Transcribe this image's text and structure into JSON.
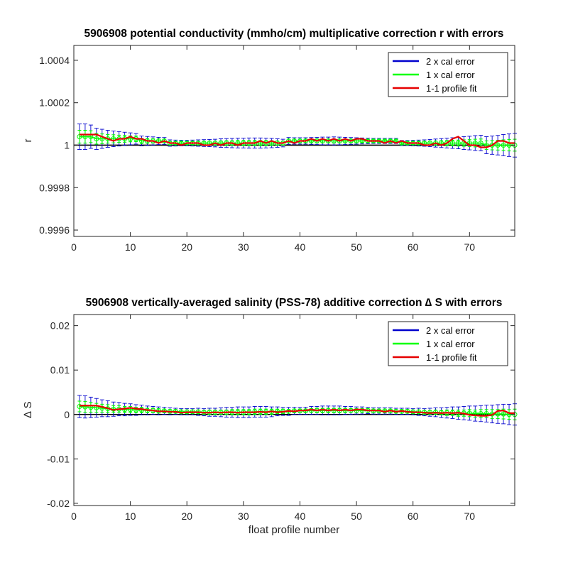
{
  "colors": {
    "two_x_cal_error": "#0000cd",
    "one_x_cal_error": "#00ff00",
    "profile_fit": "#e60000",
    "baseline": "#000000"
  },
  "chart_data": [
    {
      "type": "line",
      "title": "5906908 potential conductivity (mmho/cm) multiplicative correction r with errors",
      "xlabel": "",
      "ylabel": "r",
      "xlim": [
        0,
        78
      ],
      "ylim": [
        0.99957,
        1.00047
      ],
      "xticks": [
        0,
        10,
        20,
        30,
        40,
        50,
        60,
        70
      ],
      "xtick_labels": [
        "0",
        "10",
        "20",
        "30",
        "40",
        "50",
        "60",
        "70"
      ],
      "yticks": [
        0.9996,
        0.9998,
        1.0,
        1.0002,
        1.0004
      ],
      "ytick_labels": [
        "0.9996",
        "0.9998",
        "1",
        "1.0002",
        "1.0004"
      ],
      "grid": false,
      "legend_position": "top-right",
      "legend": [
        "2 x cal error",
        "1 x cal error",
        "1-1 profile fit"
      ],
      "baseline": 1.0,
      "x_start": 1,
      "fit": [
        1.00005,
        1.00005,
        1.00005,
        1.00005,
        1.00004,
        1.00003,
        1.00002,
        1.00003,
        1.00003,
        1.00004,
        1.00003,
        1.00003,
        1.00002,
        1.00002,
        1.00001,
        1.00002,
        1.00001,
        1.00001,
        1.0,
        1.00001,
        1.00001,
        1.00001,
        1.0,
        1.0,
        1.00001,
        1.0,
        1.00001,
        1.00001,
        1.0,
        1.00001,
        1.00001,
        1.00001,
        1.00002,
        1.00001,
        1.00002,
        1.00001,
        1.00001,
        1.00002,
        1.00001,
        1.00002,
        1.00002,
        1.00003,
        1.00002,
        1.00003,
        1.00002,
        1.00003,
        1.00002,
        1.00003,
        1.00002,
        1.00003,
        1.00003,
        1.00002,
        1.00002,
        1.00002,
        1.00001,
        1.00002,
        1.00001,
        1.00002,
        1.00001,
        1.00001,
        1.00001,
        1.0,
        1.0,
        1.00001,
        1.0,
        1.00001,
        1.00003,
        1.00004,
        1.00002,
        1.0,
        1.0,
        0.99999,
        0.99999,
        1.0,
        1.00002,
        1.00002,
        1.00001,
        1.00001
      ],
      "smooth": [
        1.00004,
        1.00004,
        1.00004,
        1.00003,
        1.00003,
        1.00003,
        1.00003,
        1.00003,
        1.00003,
        1.00003,
        1.00003,
        1.00002,
        1.00002,
        1.00002,
        1.00002,
        1.00002,
        1.00001,
        1.00001,
        1.00001,
        1.00001,
        1.00001,
        1.00001,
        1.00001,
        1.00001,
        1.00001,
        1.00001,
        1.00001,
        1.00001,
        1.00001,
        1.00001,
        1.00001,
        1.00001,
        1.00001,
        1.00001,
        1.00001,
        1.00001,
        1.00001,
        1.00002,
        1.00002,
        1.00002,
        1.00002,
        1.00002,
        1.00002,
        1.00002,
        1.00002,
        1.00002,
        1.00002,
        1.00002,
        1.00002,
        1.00002,
        1.00002,
        1.00002,
        1.00002,
        1.00002,
        1.00002,
        1.00002,
        1.00002,
        1.00001,
        1.00001,
        1.00001,
        1.00001,
        1.00001,
        1.00001,
        1.00001,
        1.00001,
        1.00001,
        1.00001,
        1.00001,
        1.00001,
        1.00001,
        1.00001,
        1.00001,
        1.0,
        1.0,
        1.0,
        1.0,
        1.0,
        1.0
      ],
      "err2": [
        6e-05,
        6e-05,
        5.5e-05,
        5e-05,
        4.5e-05,
        4e-05,
        3.7e-05,
        3.4e-05,
        3.1e-05,
        2.8e-05,
        2.5e-05,
        2.3e-05,
        2.1e-05,
        1.9e-05,
        1.7e-05,
        1.6e-05,
        1.5e-05,
        1.4e-05,
        1.3e-05,
        1.3e-05,
        1.4e-05,
        1.5e-05,
        1.6e-05,
        1.7e-05,
        1.8e-05,
        2e-05,
        2.1e-05,
        2.2e-05,
        2.3e-05,
        2.3e-05,
        2.4e-05,
        2.4e-05,
        2.4e-05,
        2.3e-05,
        2.2e-05,
        2e-05,
        1.8e-05,
        1.6e-05,
        1.5e-05,
        1.5e-05,
        1.5e-05,
        1.6e-05,
        1.7e-05,
        1.8e-05,
        1.8e-05,
        1.9e-05,
        1.8e-05,
        1.7e-05,
        1.6e-05,
        1.5e-05,
        1.4e-05,
        1.3e-05,
        1.2e-05,
        1.2e-05,
        1.2e-05,
        1.2e-05,
        1.2e-05,
        1.2e-05,
        1.2e-05,
        1.3e-05,
        1.4e-05,
        1.5e-05,
        1.7e-05,
        1.9e-05,
        2.1e-05,
        2.3e-05,
        2.5e-05,
        2.7e-05,
        3e-05,
        3.2e-05,
        3.5e-05,
        3.7e-05,
        4e-05,
        4.3e-05,
        4.6e-05,
        5e-05,
        5.3e-05,
        5.6e-05
      ],
      "err1": [
        3e-05,
        3e-05,
        2.8e-05,
        2.5e-05,
        2.3e-05,
        2e-05,
        1.9e-05,
        1.7e-05,
        1.6e-05,
        1.4e-05,
        1.3e-05,
        1.2e-05,
        1.1e-05,
        1e-05,
        9e-06,
        8e-06,
        8e-06,
        7e-06,
        7e-06,
        7e-06,
        7e-06,
        8e-06,
        8e-06,
        9e-06,
        9e-06,
        1e-05,
        1.1e-05,
        1.1e-05,
        1.2e-05,
        1.2e-05,
        1.2e-05,
        1.2e-05,
        1.2e-05,
        1.2e-05,
        1.1e-05,
        1e-05,
        9e-06,
        8e-06,
        8e-06,
        8e-06,
        8e-06,
        8e-06,
        9e-06,
        9e-06,
        9e-06,
        1e-05,
        9e-06,
        9e-06,
        8e-06,
        8e-06,
        7e-06,
        7e-06,
        6e-06,
        6e-06,
        6e-06,
        6e-06,
        6e-06,
        6e-06,
        6e-06,
        7e-06,
        7e-06,
        8e-06,
        9e-06,
        1e-05,
        1.1e-05,
        1.2e-05,
        1.3e-05,
        1.4e-05,
        1.5e-05,
        1.6e-05,
        1.8e-05,
        1.9e-05,
        2e-05,
        2.2e-05,
        2.3e-05,
        2.5e-05,
        2.7e-05,
        2.8e-05
      ]
    },
    {
      "type": "line",
      "title": "5906908 vertically-averaged salinity (PSS-78) additive correction ∆ S with errors",
      "xlabel": "float profile number",
      "ylabel": "∆ S",
      "xlim": [
        0,
        78
      ],
      "ylim": [
        -0.0205,
        0.0225
      ],
      "xticks": [
        0,
        10,
        20,
        30,
        40,
        50,
        60,
        70
      ],
      "xtick_labels": [
        "0",
        "10",
        "20",
        "30",
        "40",
        "50",
        "60",
        "70"
      ],
      "yticks": [
        -0.02,
        -0.01,
        0,
        0.01,
        0.02
      ],
      "ytick_labels": [
        "-0.02",
        "-0.01",
        "0",
        "0.01",
        "0.02"
      ],
      "grid": false,
      "legend_position": "top-right",
      "legend": [
        "2 x cal error",
        "1 x cal error",
        "1-1 profile fit"
      ],
      "baseline": 0,
      "x_start": 1,
      "fit": [
        0.002,
        0.002,
        0.002,
        0.002,
        0.0017,
        0.0014,
        0.001,
        0.0012,
        0.0013,
        0.0015,
        0.0013,
        0.0012,
        0.001,
        0.0009,
        0.0007,
        0.0007,
        0.0006,
        0.0006,
        0.0004,
        0.0005,
        0.0005,
        0.0005,
        0.0004,
        0.0004,
        0.0005,
        0.0004,
        0.0005,
        0.0005,
        0.0004,
        0.0005,
        0.0005,
        0.0005,
        0.0006,
        0.0005,
        0.0007,
        0.0005,
        0.0006,
        0.0008,
        0.0007,
        0.0009,
        0.0009,
        0.0011,
        0.0009,
        0.0011,
        0.0009,
        0.0011,
        0.0009,
        0.0011,
        0.0009,
        0.0011,
        0.0011,
        0.0009,
        0.0009,
        0.0009,
        0.0006,
        0.0009,
        0.0006,
        0.0008,
        0.0006,
        0.0005,
        0.0005,
        0.0004,
        0.0003,
        0.0004,
        0.0003,
        0.0004,
        0.0003,
        0.0004,
        0.0002,
        -0.0001,
        -0.0002,
        -0.0003,
        -0.0003,
        -0.0001,
        0.0008,
        0.0009,
        0.0003,
        0.0003
      ],
      "smooth": [
        0.0018,
        0.0017,
        0.0016,
        0.0015,
        0.0014,
        0.0013,
        0.0012,
        0.0012,
        0.0011,
        0.0011,
        0.001,
        0.001,
        0.0009,
        0.0009,
        0.0008,
        0.0008,
        0.0007,
        0.0007,
        0.0006,
        0.0006,
        0.0006,
        0.0006,
        0.0005,
        0.0005,
        0.0005,
        0.0005,
        0.0005,
        0.0005,
        0.0005,
        0.0005,
        0.0005,
        0.0006,
        0.0006,
        0.0006,
        0.0006,
        0.0007,
        0.0007,
        0.0007,
        0.0008,
        0.0008,
        0.0008,
        0.0009,
        0.0009,
        0.0009,
        0.0009,
        0.0009,
        0.0009,
        0.0009,
        0.0009,
        0.0009,
        0.0009,
        0.0009,
        0.0008,
        0.0008,
        0.0008,
        0.0008,
        0.0007,
        0.0007,
        0.0007,
        0.0006,
        0.0006,
        0.0005,
        0.0005,
        0.0005,
        0.0004,
        0.0004,
        0.0004,
        0.0003,
        0.0003,
        0.0003,
        0.0002,
        0.0002,
        0.0002,
        0.0001,
        0.0001,
        0.0001,
        0.0,
        0.0
      ],
      "err2": [
        0.0025,
        0.0025,
        0.0023,
        0.0021,
        0.0019,
        0.0018,
        0.0016,
        0.0015,
        0.0014,
        0.0013,
        0.0012,
        0.0011,
        0.001,
        0.0009,
        0.0009,
        0.0008,
        0.0008,
        0.0007,
        0.0007,
        0.0007,
        0.0007,
        0.0008,
        0.0008,
        0.0009,
        0.0009,
        0.001,
        0.0011,
        0.0011,
        0.0012,
        0.0012,
        0.0012,
        0.0012,
        0.0012,
        0.0012,
        0.0011,
        0.001,
        0.0009,
        0.0009,
        0.0008,
        0.0008,
        0.0008,
        0.0009,
        0.0009,
        0.001,
        0.001,
        0.001,
        0.001,
        0.0009,
        0.0009,
        0.0008,
        0.0008,
        0.0007,
        0.0007,
        0.0007,
        0.0007,
        0.0007,
        0.0007,
        0.0007,
        0.0007,
        0.0007,
        0.0008,
        0.0008,
        0.0009,
        0.001,
        0.0011,
        0.0012,
        0.0013,
        0.0014,
        0.0015,
        0.0016,
        0.0017,
        0.0018,
        0.0019,
        0.002,
        0.0021,
        0.0022,
        0.0023,
        0.0024
      ],
      "err1": [
        0.0012,
        0.0012,
        0.0011,
        0.001,
        0.0009,
        0.0009,
        0.0008,
        0.0008,
        0.0007,
        0.0007,
        0.0006,
        0.0006,
        0.0005,
        0.0005,
        0.0005,
        0.0004,
        0.0004,
        0.0004,
        0.0004,
        0.0004,
        0.0004,
        0.0004,
        0.0004,
        0.0005,
        0.0005,
        0.0005,
        0.0005,
        0.0006,
        0.0006,
        0.0006,
        0.0006,
        0.0006,
        0.0006,
        0.0006,
        0.0006,
        0.0005,
        0.0005,
        0.0004,
        0.0004,
        0.0004,
        0.0004,
        0.0004,
        0.0005,
        0.0005,
        0.0005,
        0.0005,
        0.0005,
        0.0005,
        0.0004,
        0.0004,
        0.0004,
        0.0004,
        0.0004,
        0.0004,
        0.0004,
        0.0004,
        0.0004,
        0.0004,
        0.0004,
        0.0004,
        0.0004,
        0.0004,
        0.0004,
        0.0005,
        0.0005,
        0.0006,
        0.0006,
        0.0007,
        0.0007,
        0.0008,
        0.0008,
        0.0009,
        0.0009,
        0.001,
        0.001,
        0.0011,
        0.0011,
        0.0012
      ]
    }
  ]
}
